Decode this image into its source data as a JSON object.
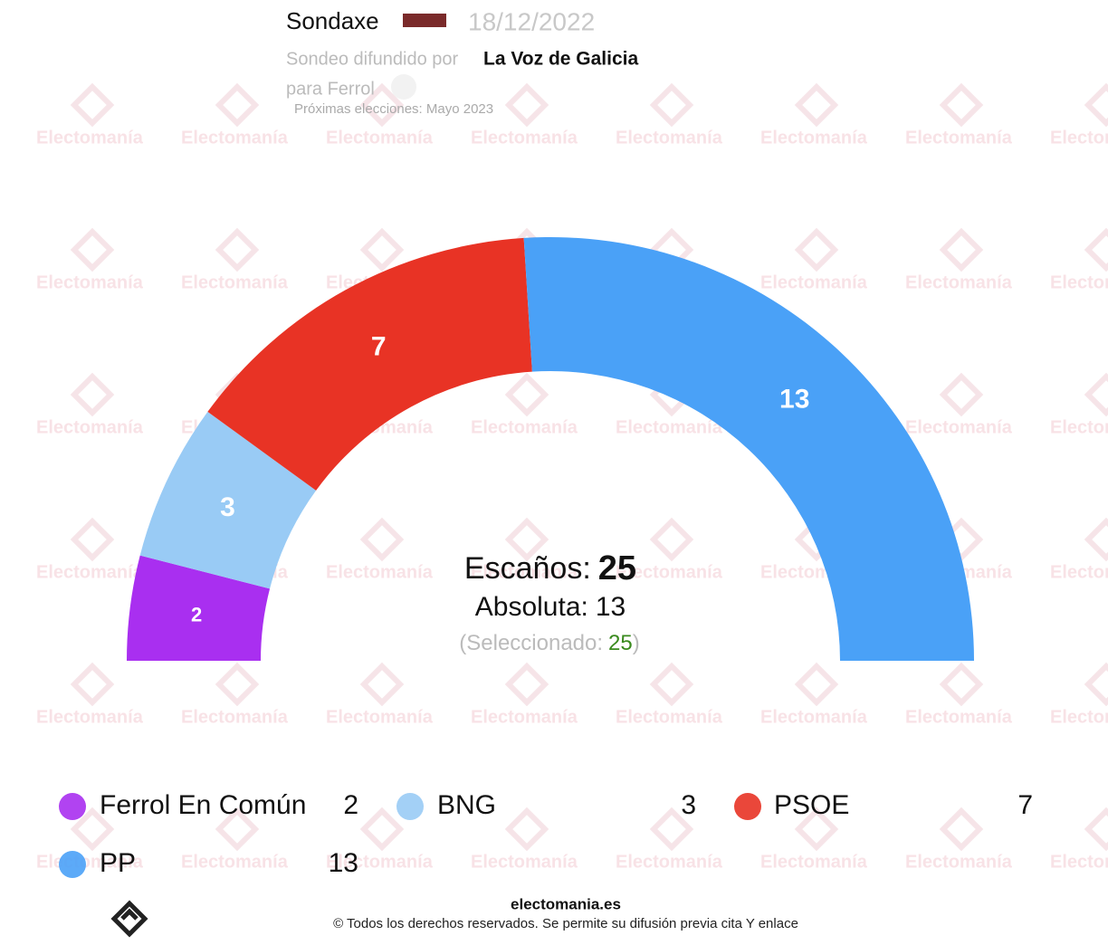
{
  "chart_data": {
    "type": "hemicycle",
    "pollster": "Sondaxe",
    "date": "18/12/2022",
    "published_by_label": "Sondeo difundido por",
    "published_by": "La Voz de Galicia",
    "place": "para Ferrol",
    "next_election": "Próximas elecciones: Mayo 2023",
    "categories": [
      "Ferrol En Común",
      "BNG",
      "PSOE",
      "PP"
    ],
    "values": [
      2,
      3,
      7,
      13
    ],
    "colors": [
      "#a92ff0",
      "#99cbf5",
      "#e83325",
      "#4aa1f7"
    ],
    "seats_label": "Escaños:",
    "seats_total": 25,
    "majority_label": "Absoluta:",
    "majority": 13,
    "selected_label": "(Seleccionado:",
    "selected": 25,
    "selected_close": ")",
    "watermark": "Electomanía",
    "footer_site": "electomania.es",
    "footer_note": "© Todos los derechos reservados. Se permite su difusión previa cita Y enlace"
  }
}
